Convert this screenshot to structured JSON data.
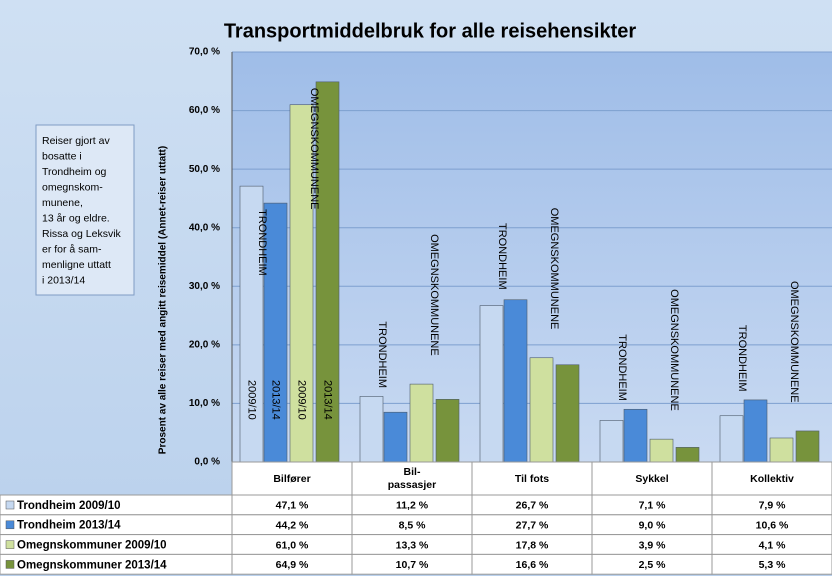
{
  "chart_data": {
    "type": "bar",
    "title": "Transportmiddelbruk for alle reisehensikter",
    "y_label": "Prosent av alle reiser med angitt reisemiddel (Annet-reiser uttatt)",
    "annotation": [
      "Reiser gjort av",
      "bosatte  i",
      "Trondheim og",
      "omegnskom-",
      "munene,",
      "13 år og eldre.",
      "Rissa og Leksvik",
      "er for å sam-",
      "menligne uttatt",
      "i 2013/14"
    ],
    "group_labels": [
      "TRONDHEIM",
      "OMEGNSKOMMUNENE"
    ],
    "period_labels": [
      "2009/10",
      "2013/14"
    ],
    "categories": [
      [
        "Bilfører"
      ],
      [
        "Bil-",
        "passasjer"
      ],
      [
        "Til fots"
      ],
      [
        "Sykkel"
      ],
      [
        "Kollektiv"
      ]
    ],
    "series": [
      {
        "name": "Trondheim 2009/10",
        "color": "#c6d9f1",
        "values": [
          47.1,
          11.2,
          26.7,
          7.1,
          7.9
        ],
        "value_labels": [
          "47,1 %",
          "11,2 %",
          "26,7 %",
          "7,1 %",
          "7,9 %"
        ]
      },
      {
        "name": "Trondheim 2013/14",
        "color": "#4a8ad8",
        "values": [
          44.2,
          8.5,
          27.7,
          9.0,
          10.6
        ],
        "value_labels": [
          "44,2 %",
          "8,5 %",
          "27,7 %",
          "9,0 %",
          "10,6 %"
        ]
      },
      {
        "name": "Omegnskommuner 2009/10",
        "color": "#cfe09f",
        "values": [
          61.0,
          13.3,
          17.8,
          3.9,
          4.1
        ],
        "value_labels": [
          "61,0 %",
          "13,3 %",
          "17,8 %",
          "3,9 %",
          "4,1 %"
        ]
      },
      {
        "name": "Omegnskommuner 2013/14",
        "color": "#77933c",
        "values": [
          64.9,
          10.7,
          16.6,
          2.5,
          5.3
        ],
        "value_labels": [
          "64,9 %",
          "10,7 %",
          "16,6 %",
          "2,5 %",
          "5,3 %"
        ]
      }
    ],
    "ylim": [
      0,
      70
    ],
    "yticks": [
      {
        "value": 0,
        "label": "0,0 %"
      },
      {
        "value": 10,
        "label": "10,0 %"
      },
      {
        "value": 20,
        "label": "20,0 %"
      },
      {
        "value": 30,
        "label": "30,0 %"
      },
      {
        "value": 40,
        "label": "40,0 %"
      },
      {
        "value": 50,
        "label": "50,0 %"
      },
      {
        "value": 60,
        "label": "60,0 %"
      },
      {
        "value": 70,
        "label": "70,0 %"
      }
    ],
    "grid": true
  }
}
